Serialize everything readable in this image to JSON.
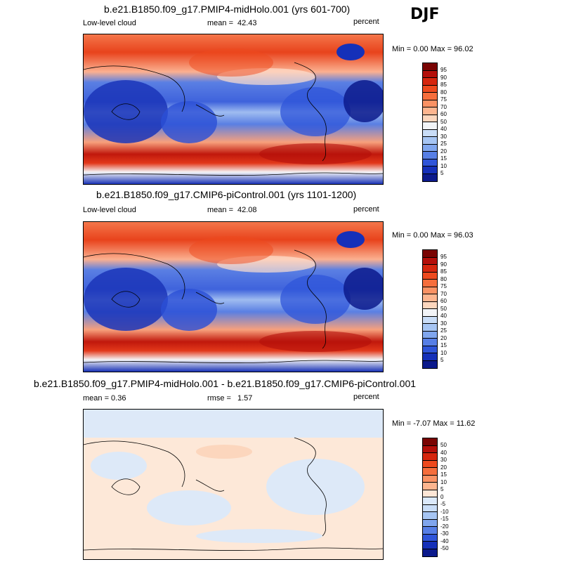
{
  "season": "DJF",
  "panels": [
    {
      "title": "b.e21.B1850.f09_g17.PMIP4-midHolo.001 (yrs 601-700)",
      "left": "Low-level cloud",
      "center_label": "mean =",
      "center_value": "42.43",
      "right": "percent",
      "minmax": "Min =  0.00 Max =  96.02"
    },
    {
      "title": "b.e21.B1850.f09_g17.CMIP6-piControl.001 (yrs 1101-1200)",
      "left": "Low-level cloud",
      "center_label": "mean =",
      "center_value": "42.08",
      "right": "percent",
      "minmax": "Min =  0.00 Max =  96.03"
    },
    {
      "title": "b.e21.B1850.f09_g17.PMIP4-midHolo.001 - b.e21.B1850.f09_g17.CMIP6-piControl.001",
      "left": "mean =   0.36",
      "center_label": "rmse =",
      "center_value": "1.57",
      "right": "percent",
      "minmax": "Min =  -7.07 Max =  11.62"
    }
  ],
  "colorbar_abs": {
    "labels": [
      "95",
      "90",
      "85",
      "80",
      "75",
      "70",
      "60",
      "50",
      "40",
      "30",
      "25",
      "20",
      "15",
      "10",
      "5"
    ],
    "colors": [
      "#7a0403",
      "#b40f0a",
      "#d6260e",
      "#ee4a1e",
      "#f66e3c",
      "#fa9264",
      "#fdb58f",
      "#fcd6bd",
      "#f2f4f7",
      "#c9ddf7",
      "#a6c5f3",
      "#80a6ee",
      "#577fe6",
      "#2f55d9",
      "#1530b9",
      "#0c1a8c"
    ]
  },
  "colorbar_diff": {
    "labels": [
      "50",
      "40",
      "30",
      "20",
      "15",
      "10",
      "5",
      "0",
      "-5",
      "-10",
      "-15",
      "-20",
      "-30",
      "-40",
      "-50"
    ],
    "colors": [
      "#7a0403",
      "#b40f0a",
      "#d6260e",
      "#ee4a1e",
      "#f66e3c",
      "#fa9264",
      "#fdb58f",
      "#fde6d6",
      "#dbe9fa",
      "#c9ddf7",
      "#a6c5f3",
      "#80a6ee",
      "#577fe6",
      "#2f55d9",
      "#1530b9",
      "#0c1a8c"
    ]
  }
}
